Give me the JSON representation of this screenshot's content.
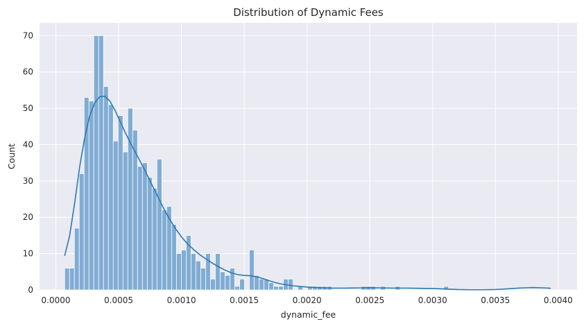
{
  "chart_data": {
    "type": "bar",
    "title": "Distribution of Dynamic Fees",
    "xlabel": "dynamic_fee",
    "ylabel": "Count",
    "xlim": [
      -0.00013,
      0.00415
    ],
    "ylim": [
      0,
      73.5
    ],
    "x_ticks": [
      0.0,
      0.0005,
      0.001,
      0.0015,
      0.002,
      0.0025,
      0.003,
      0.0035,
      0.004
    ],
    "x_tick_labels": [
      "0.0000",
      "0.0005",
      "0.0010",
      "0.0015",
      "0.0020",
      "0.0025",
      "0.0030",
      "0.0035",
      "0.0040"
    ],
    "y_ticks": [
      0,
      10,
      20,
      30,
      40,
      50,
      60,
      70
    ],
    "y_tick_labels": [
      "0",
      "10",
      "20",
      "30",
      "40",
      "50",
      "60",
      "70"
    ],
    "grid": true,
    "bin_start": 7e-05,
    "bin_width": 3.87e-05,
    "counts": [
      6,
      6,
      17,
      32,
      53,
      52,
      70,
      70,
      56,
      51,
      41,
      48,
      38,
      50,
      44,
      34,
      35,
      31,
      28,
      36,
      22,
      23,
      18,
      10,
      11,
      15,
      10,
      8,
      6,
      10,
      3,
      10,
      5,
      4,
      6,
      1,
      3,
      0,
      11,
      4,
      3,
      3,
      2,
      1,
      1,
      3,
      3,
      0,
      1,
      0,
      1,
      1,
      1,
      1,
      1,
      0,
      0,
      0,
      0,
      0,
      0,
      1,
      1,
      1,
      0,
      1,
      0,
      0,
      1,
      0,
      0,
      0,
      0,
      0,
      0,
      0,
      0,
      0,
      1,
      0,
      0,
      0,
      0,
      0,
      0,
      0,
      0,
      0,
      0,
      0,
      0,
      0,
      0,
      0,
      0,
      0,
      0,
      0,
      0,
      0,
      0,
      0,
      0,
      0,
      0,
      0,
      0,
      0,
      0,
      0,
      0,
      0,
      0,
      0,
      0,
      0,
      0,
      0,
      0,
      0,
      0,
      0,
      0,
      0,
      0,
      0,
      0
    ],
    "kde": {
      "x": [
        7e-05,
        0.00011,
        0.00015,
        0.00019,
        0.00023,
        0.00027,
        0.00031,
        0.00035,
        0.00039,
        0.00043,
        0.00047,
        0.00051,
        0.00055,
        0.0006,
        0.00065,
        0.0007,
        0.00075,
        0.0008,
        0.00085,
        0.0009,
        0.00095,
        0.001,
        0.00105,
        0.0011,
        0.00115,
        0.0012,
        0.00125,
        0.0013,
        0.00135,
        0.0014,
        0.00145,
        0.0015,
        0.00155,
        0.0016,
        0.00165,
        0.0017,
        0.00175,
        0.0018,
        0.0019,
        0.002,
        0.0021,
        0.0022,
        0.0023,
        0.0024,
        0.0025,
        0.0026,
        0.0027,
        0.0028,
        0.0029,
        0.003,
        0.0031,
        0.0032,
        0.0033,
        0.0034,
        0.0035,
        0.0036,
        0.0037,
        0.0038,
        0.0039,
        0.00394
      ],
      "y": [
        9.4,
        15,
        24,
        34,
        42,
        48,
        51.5,
        53.2,
        53.3,
        52,
        49.5,
        46.5,
        43.5,
        40,
        36.8,
        33.5,
        30,
        26.5,
        23,
        19.8,
        17,
        14.6,
        12.6,
        11,
        9.6,
        8.4,
        7.3,
        6.3,
        5.4,
        4.7,
        4.2,
        4.0,
        3.9,
        3.6,
        3.1,
        2.5,
        2.0,
        1.6,
        1.1,
        0.8,
        0.6,
        0.5,
        0.5,
        0.55,
        0.6,
        0.55,
        0.5,
        0.5,
        0.45,
        0.4,
        0.25,
        0.1,
        0.05,
        0.05,
        0.1,
        0.3,
        0.55,
        0.65,
        0.55,
        0.45
      ]
    },
    "colors": {
      "bar_fill": "#81acd3",
      "bar_edge": "#ffffff",
      "kde_line": "#2a78b4",
      "background": "#eaeaf2",
      "grid": "#ffffff"
    }
  }
}
